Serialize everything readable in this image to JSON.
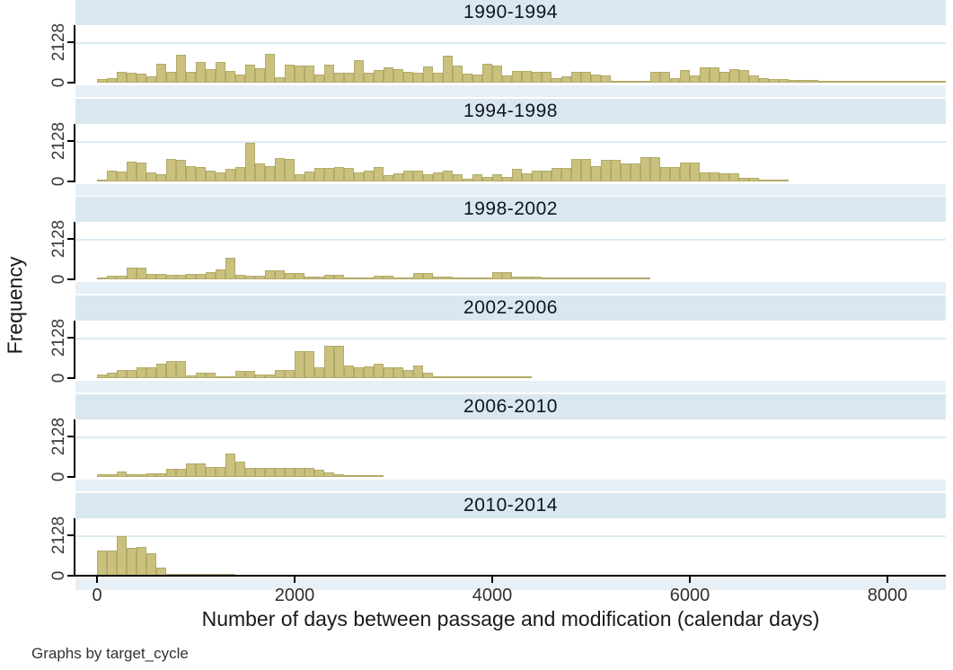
{
  "note": "Graphs by target_cycle",
  "axes": {
    "x_label": "Number of days between passage and modification (calendar days)",
    "y_label": "Frequency",
    "x_ticks": [
      "0",
      "2000",
      "4000",
      "6000",
      "8000"
    ],
    "x_tick_values": [
      0,
      2000,
      4000,
      6000,
      8000
    ],
    "y_ticks": [
      "0",
      "2128"
    ],
    "y_tick_values": [
      0,
      2128
    ]
  },
  "colors": {
    "bar_fill": "#c9c17d",
    "bar_border": "#b2aa68",
    "title_band": "#d9e7f0",
    "gap_band": "#e7f0f6",
    "gridline": "#dcebf3",
    "plot_background": "#ffffff",
    "axis": "#000000",
    "text": "#1a1a1a"
  },
  "chart_data": {
    "type": "bar",
    "subtype": "histogram-small-multiples",
    "by_variable": "target_cycle",
    "bin_width_days": 100,
    "xlim": [
      0,
      8600
    ],
    "ylim": [
      0,
      2128
    ],
    "grid": "horizontal line at y=2128 only",
    "xlabel": "Number of days between passage and modification (calendar days)",
    "ylabel": "Frequency",
    "panels": [
      {
        "title": "1990-1994",
        "values": [
          190,
          240,
          570,
          520,
          470,
          330,
          990,
          570,
          1470,
          570,
          1090,
          710,
          1090,
          620,
          430,
          950,
          760,
          1510,
          280,
          950,
          900,
          900,
          430,
          950,
          520,
          520,
          1180,
          520,
          660,
          800,
          710,
          570,
          520,
          850,
          520,
          1420,
          900,
          470,
          430,
          990,
          900,
          380,
          620,
          620,
          570,
          570,
          240,
          330,
          570,
          570,
          430,
          380,
          90,
          90,
          90,
          90,
          570,
          570,
          240,
          660,
          380,
          800,
          800,
          570,
          710,
          660,
          380,
          240,
          190,
          190,
          140,
          140,
          140,
          90,
          90,
          90,
          90,
          90,
          90,
          50,
          50,
          50,
          50,
          50,
          50,
          50
        ]
      },
      {
        "title": "1994-1998",
        "values": [
          50,
          570,
          520,
          1040,
          990,
          470,
          380,
          1180,
          1130,
          800,
          760,
          570,
          470,
          660,
          760,
          2050,
          950,
          800,
          1230,
          1180,
          380,
          520,
          710,
          710,
          760,
          710,
          470,
          570,
          760,
          330,
          430,
          570,
          570,
          380,
          470,
          570,
          380,
          140,
          380,
          240,
          400,
          240,
          660,
          430,
          570,
          570,
          710,
          710,
          1180,
          1180,
          800,
          1130,
          1130,
          950,
          950,
          1280,
          1280,
          760,
          760,
          990,
          990,
          470,
          470,
          430,
          430,
          190,
          190,
          90,
          50,
          50
        ]
      },
      {
        "title": "1998-2002",
        "values": [
          90,
          190,
          190,
          610,
          610,
          280,
          280,
          240,
          240,
          280,
          280,
          380,
          520,
          1130,
          240,
          190,
          190,
          470,
          470,
          330,
          330,
          140,
          140,
          240,
          240,
          90,
          90,
          50,
          190,
          190,
          50,
          50,
          330,
          330,
          140,
          140,
          90,
          90,
          50,
          50,
          380,
          380,
          140,
          140,
          140,
          50,
          50,
          50,
          50,
          50,
          50,
          50,
          50,
          50,
          50,
          50
        ]
      },
      {
        "title": "2002-2006",
        "values": [
          190,
          280,
          430,
          430,
          570,
          570,
          760,
          900,
          900,
          140,
          280,
          280,
          90,
          90,
          380,
          380,
          190,
          190,
          430,
          430,
          1420,
          1420,
          580,
          1690,
          1690,
          660,
          570,
          610,
          760,
          570,
          570,
          430,
          660,
          280,
          90,
          90,
          50,
          50,
          50,
          50,
          50,
          50,
          50,
          50
        ]
      },
      {
        "title": "2006-2010",
        "values": [
          140,
          140,
          280,
          140,
          140,
          190,
          190,
          420,
          420,
          700,
          700,
          520,
          520,
          1210,
          800,
          470,
          470,
          470,
          470,
          470,
          470,
          470,
          380,
          240,
          140,
          90,
          90,
          50,
          50
        ]
      },
      {
        "title": "2010-2014",
        "values": [
          1320,
          1320,
          2100,
          1470,
          1530,
          1170,
          430,
          110,
          110,
          60,
          60,
          40,
          40,
          30
        ]
      }
    ]
  }
}
